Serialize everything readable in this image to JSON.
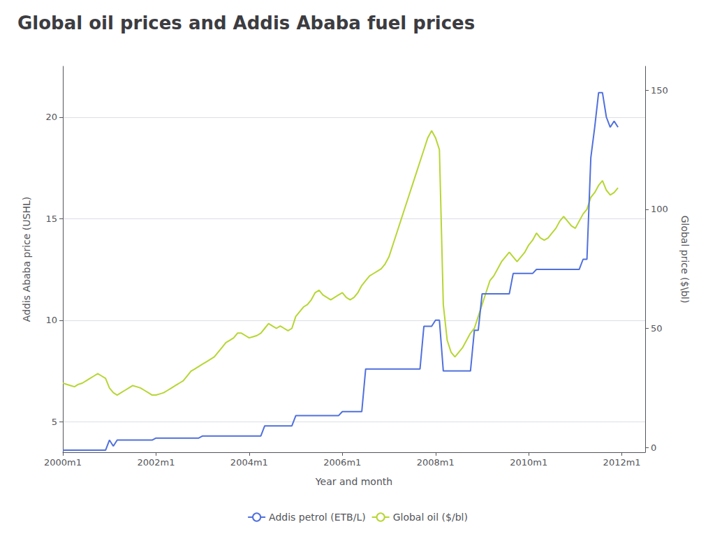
{
  "chart_data": {
    "type": "line",
    "title": "Global oil prices and Addis Ababa fuel prices",
    "xlabel": "Year and month",
    "ylabel": "Addis Ababa price (USHL)",
    "y2label": "Global price ($\\bl)",
    "xlim": [
      2000,
      2012.5
    ],
    "xticks": [
      {
        "value": 2000,
        "label": "2000m1"
      },
      {
        "value": 2002,
        "label": "2002m1"
      },
      {
        "value": 2004,
        "label": "2004m1"
      },
      {
        "value": 2006,
        "label": "2006m1"
      },
      {
        "value": 2008,
        "label": "2008m1"
      },
      {
        "value": 2010,
        "label": "2010m1"
      },
      {
        "value": 2012,
        "label": "2012m1"
      }
    ],
    "ylim": [
      3.5,
      22.5
    ],
    "yticks": [
      5,
      10,
      15,
      20
    ],
    "y2lim": [
      -2,
      160
    ],
    "y2ticks": [
      0,
      50,
      100,
      150
    ],
    "grid": true,
    "legend": "bottom",
    "x": [
      2000,
      2000.0833333333333,
      2000.1666666666667,
      2000.25,
      2000.3333333333333,
      2000.4166666666667,
      2000.5,
      2000.5833333333333,
      2000.6666666666667,
      2000.75,
      2000.8333333333333,
      2000.9166666666667,
      2001,
      2001.0833333333333,
      2001.1666666666667,
      2001.25,
      2001.3333333333333,
      2001.4166666666667,
      2001.5,
      2001.5833333333333,
      2001.6666666666667,
      2001.75,
      2001.8333333333333,
      2001.9166666666667,
      2002,
      2002.0833333333333,
      2002.1666666666667,
      2002.25,
      2002.3333333333333,
      2002.4166666666667,
      2002.5,
      2002.5833333333333,
      2002.6666666666667,
      2002.75,
      2002.8333333333333,
      2002.9166666666667,
      2003,
      2003.0833333333333,
      2003.1666666666667,
      2003.25,
      2003.3333333333333,
      2003.4166666666667,
      2003.5,
      2003.5833333333333,
      2003.6666666666667,
      2003.75,
      2003.8333333333333,
      2003.9166666666667,
      2004,
      2004.0833333333333,
      2004.1666666666667,
      2004.25,
      2004.3333333333333,
      2004.4166666666667,
      2004.5,
      2004.5833333333333,
      2004.6666666666667,
      2004.75,
      2004.8333333333333,
      2004.9166666666667,
      2005,
      2005.0833333333333,
      2005.1666666666667,
      2005.25,
      2005.3333333333333,
      2005.4166666666667,
      2005.5,
      2005.5833333333333,
      2005.6666666666667,
      2005.75,
      2005.8333333333333,
      2005.9166666666667,
      2006,
      2006.0833333333333,
      2006.1666666666667,
      2006.25,
      2006.3333333333333,
      2006.4166666666667,
      2006.5,
      2006.5833333333333,
      2006.6666666666667,
      2006.75,
      2006.8333333333333,
      2006.9166666666667,
      2007,
      2007.0833333333333,
      2007.1666666666667,
      2007.25,
      2007.3333333333333,
      2007.4166666666667,
      2007.5,
      2007.5833333333333,
      2007.6666666666667,
      2007.75,
      2007.8333333333333,
      2007.9166666666667,
      2008,
      2008.0833333333333,
      2008.1666666666667,
      2008.25,
      2008.3333333333333,
      2008.4166666666667,
      2008.5,
      2008.5833333333333,
      2008.6666666666667,
      2008.75,
      2008.8333333333333,
      2008.9166666666667,
      2009,
      2009.0833333333333,
      2009.1666666666667,
      2009.25,
      2009.3333333333333,
      2009.4166666666667,
      2009.5,
      2009.5833333333333,
      2009.6666666666667,
      2009.75,
      2009.8333333333333,
      2009.9166666666667,
      2010,
      2010.0833333333333,
      2010.1666666666667,
      2010.25,
      2010.3333333333333,
      2010.4166666666667,
      2010.5,
      2010.5833333333333,
      2010.6666666666667,
      2010.75,
      2010.8333333333333,
      2010.9166666666667,
      2011,
      2011.0833333333333,
      2011.1666666666667,
      2011.25,
      2011.3333333333333,
      2011.4166666666667,
      2011.5,
      2011.5833333333333,
      2011.6666666666667,
      2011.75,
      2011.8333333333333,
      2011.9166666666667
    ],
    "series": [
      {
        "name": "Addis petrol (ETB/L)",
        "values": [
          3.6,
          3.6,
          3.6,
          3.6,
          3.6,
          3.6,
          3.6,
          3.6,
          3.6,
          3.6,
          3.6,
          3.6,
          4.1,
          3.8,
          4.1,
          4.1,
          4.1,
          4.1,
          4.1,
          4.1,
          4.1,
          4.1,
          4.1,
          4.1,
          4.2,
          4.2,
          4.2,
          4.2,
          4.2,
          4.2,
          4.2,
          4.2,
          4.2,
          4.2,
          4.2,
          4.2,
          4.3,
          4.3,
          4.3,
          4.3,
          4.3,
          4.3,
          4.3,
          4.3,
          4.3,
          4.3,
          4.3,
          4.3,
          4.3,
          4.3,
          4.3,
          4.3,
          4.8,
          4.8,
          4.8,
          4.8,
          4.8,
          4.8,
          4.8,
          4.8,
          5.3,
          5.3,
          5.3,
          5.3,
          5.3,
          5.3,
          5.3,
          5.3,
          5.3,
          5.3,
          5.3,
          5.3,
          5.5,
          5.5,
          5.5,
          5.5,
          5.5,
          5.5,
          7.6,
          7.6,
          7.6,
          7.6,
          7.6,
          7.6,
          7.6,
          7.6,
          7.6,
          7.6,
          7.6,
          7.6,
          7.6,
          7.6,
          7.6,
          9.7,
          9.7,
          9.7,
          10.0,
          10.0,
          7.5,
          7.5,
          7.5,
          7.5,
          7.5,
          7.5,
          7.5,
          7.5,
          9.5,
          9.5,
          11.3,
          11.3,
          11.3,
          11.3,
          11.3,
          11.3,
          11.3,
          11.3,
          12.3,
          12.3,
          12.3,
          12.3,
          12.3,
          12.3,
          12.5,
          12.5,
          12.5,
          12.5,
          12.5,
          12.5,
          12.5,
          12.5,
          12.5,
          12.5,
          12.5,
          12.5,
          13.0,
          13.0,
          18.0,
          19.5,
          21.2,
          21.2,
          20.0,
          19.5,
          19.8,
          19.5
        ]
      },
      {
        "name": "Global oil ($/bl)",
        "axis": "y2",
        "values": [
          27,
          26.5,
          26,
          25.5,
          26.5,
          27,
          28,
          29,
          30,
          31,
          30,
          29,
          25,
          23,
          22,
          23,
          24,
          25,
          26,
          25.5,
          25,
          24,
          23,
          22,
          22,
          22.5,
          23,
          24,
          25,
          26,
          27,
          28,
          30,
          32,
          33,
          34,
          35,
          36,
          37,
          38,
          40,
          42,
          44,
          45,
          46,
          48,
          48,
          47,
          46,
          46.5,
          47,
          48,
          50,
          52,
          51,
          50,
          51,
          50,
          49,
          50,
          55,
          57,
          59,
          60,
          62,
          65,
          66,
          64,
          63,
          62,
          63,
          64,
          65,
          63,
          62,
          63,
          65,
          68,
          70,
          72,
          73,
          74,
          75,
          77,
          80,
          85,
          90,
          95,
          100,
          105,
          110,
          115,
          120,
          125,
          130,
          133,
          130,
          125,
          60,
          45,
          40,
          38,
          40,
          42,
          45,
          48,
          50,
          55,
          60,
          65,
          70,
          72,
          75,
          78,
          80,
          82,
          80,
          78,
          80,
          82,
          85,
          87,
          90,
          88,
          87,
          88,
          90,
          92,
          95,
          97,
          95,
          93,
          92,
          95,
          98,
          100,
          105,
          107,
          110,
          112,
          108,
          106,
          107,
          109
        ]
      }
    ]
  }
}
